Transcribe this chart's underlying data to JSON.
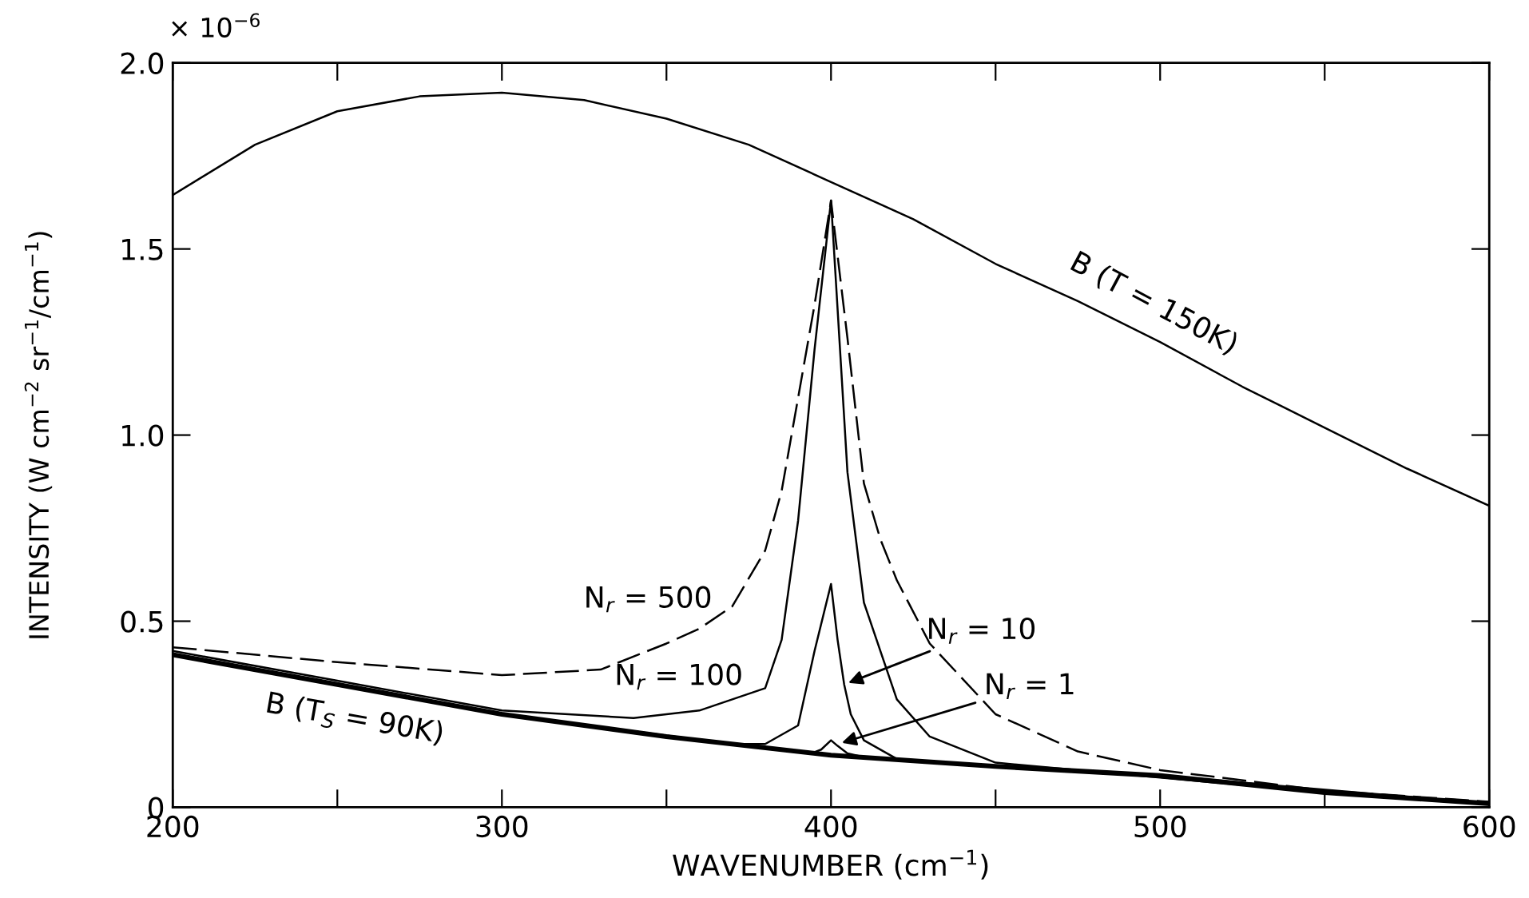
{
  "chart_data": {
    "type": "line",
    "xlabel": "WAVENUMBER (cm$^{−1}$)",
    "ylabel": "INTENSITY (W cm$^{−2}$ sr$^{−1}$/cm$^{−1}$)",
    "xlim": [
      200,
      600
    ],
    "ylim": [
      0,
      2.0
    ],
    "xticks": [
      200,
      {
        "value": 250,
        "label": null
      },
      300,
      {
        "value": 350,
        "label": null
      },
      400,
      {
        "value": 450,
        "label": null
      },
      500,
      {
        "value": 550,
        "label": null
      },
      600
    ],
    "yticks": [
      0,
      {
        "value": 0.5,
        "label": "0.5"
      },
      {
        "value": 1.0,
        "label": "1.0"
      },
      {
        "value": 1.5,
        "label": "1.5"
      },
      {
        "value": 2.0,
        "label": "2.0"
      }
    ],
    "grid": false,
    "legend": false,
    "marker": "none",
    "series": [
      {
        "color": "#000000",
        "x": [
          200,
          225,
          250,
          275,
          300,
          325,
          350,
          375,
          400,
          425,
          450,
          475,
          500,
          525,
          550,
          575,
          600
        ],
        "values": [
          1.645,
          1.78,
          1.87,
          1.91,
          1.92,
          1.9,
          1.85,
          1.78,
          1.68,
          1.58,
          1.46,
          1.36,
          1.25,
          1.13,
          1.02,
          0.91,
          0.81
        ]
      },
      {
        "color": "#000000",
        "line_style": "dashed",
        "x": [
          200,
          250,
          300,
          330,
          350,
          360,
          370,
          380,
          385,
          390,
          395,
          400,
          405,
          410,
          415,
          420,
          430,
          450,
          475,
          500,
          550,
          600
        ],
        "values": [
          0.43,
          0.39,
          0.355,
          0.37,
          0.44,
          0.48,
          0.54,
          0.69,
          0.85,
          1.1,
          1.35,
          1.63,
          1.26,
          0.87,
          0.72,
          0.61,
          0.44,
          0.25,
          0.15,
          0.1,
          0.045,
          0.015
        ]
      },
      {
        "color": "#000000",
        "x": [
          200,
          250,
          300,
          340,
          360,
          370,
          380,
          385,
          390,
          395,
          400,
          405,
          410,
          420,
          430,
          450,
          500,
          550,
          600
        ],
        "values": [
          0.42,
          0.34,
          0.26,
          0.24,
          0.26,
          0.29,
          0.32,
          0.45,
          0.77,
          1.23,
          1.63,
          0.9,
          0.55,
          0.29,
          0.19,
          0.12,
          0.08,
          0.04,
          0.01
        ]
      },
      {
        "color": "#000000",
        "x": [
          200,
          300,
          370,
          380,
          390,
          395,
          400,
          402,
          404,
          406,
          410,
          420,
          450,
          500,
          600
        ],
        "values": [
          0.41,
          0.25,
          0.17,
          0.17,
          0.22,
          0.42,
          0.6,
          0.45,
          0.33,
          0.25,
          0.18,
          0.13,
          0.11,
          0.085,
          0.01
        ]
      },
      {
        "color": "#000000",
        "x": [
          394,
          397,
          400,
          402,
          405,
          410
        ],
        "values": [
          0.145,
          0.155,
          0.18,
          0.165,
          0.145,
          0.135
        ]
      },
      {
        "color": "#000000",
        "x": [
          200,
          250,
          300,
          350,
          400,
          450,
          500,
          550,
          600
        ],
        "values": [
          0.41,
          0.33,
          0.25,
          0.19,
          0.14,
          0.11,
          0.085,
          0.04,
          0.01
        ]
      }
    ],
    "annotations": [
      "× 10$^{−6}$",
      {
        "text": "B (T = 150K)",
        "x": 496,
        "y": 1.27
      },
      {
        "text": "B (T$_{S}$ = 90K)",
        "x": 256,
        "y": 0.32
      },
      {
        "text": "N$_{r}$ = 500",
        "x": 368,
        "y": 0.52
      },
      {
        "text": "N$_{r}$ = 100",
        "x": 376,
        "y": 0.3
      },
      {
        "text": "N$_{r}$ = 10",
        "x": 404,
        "y": 0.33
      },
      {
        "text": "N$_{r}$ = 1",
        "x": 402,
        "y": 0.17
      }
    ]
  }
}
